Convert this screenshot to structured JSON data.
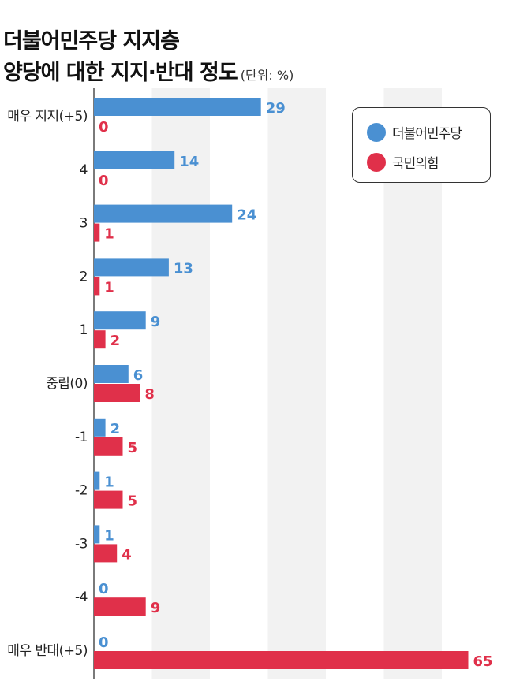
{
  "header": {
    "title_line1": "더불어민주당 지지층",
    "title_line2": "양당에 대한 지지·반대 정도",
    "unit": "(단위: %)"
  },
  "chart_data": {
    "type": "bar",
    "orientation": "horizontal",
    "title": "더불어민주당 지지층 양당에 대한 지지·반대 정도",
    "unit": "(단위: %)",
    "categories": [
      "매우 지지(+5)",
      "4",
      "3",
      "2",
      "1",
      "중립(0)",
      "-1",
      "-2",
      "-3",
      "-4",
      "매우 반대(+5)"
    ],
    "series": [
      {
        "name": "더불어민주당",
        "color": "#4a90d2",
        "values": [
          29,
          14,
          24,
          13,
          9,
          6,
          2,
          1,
          1,
          0,
          0
        ]
      },
      {
        "name": "국민의힘",
        "color": "#e0304a",
        "values": [
          0,
          0,
          1,
          1,
          2,
          8,
          5,
          5,
          4,
          9,
          65
        ]
      }
    ],
    "xlim": [
      0,
      65
    ],
    "grid": "alternating vertical bands",
    "legend_position": "top-right"
  }
}
